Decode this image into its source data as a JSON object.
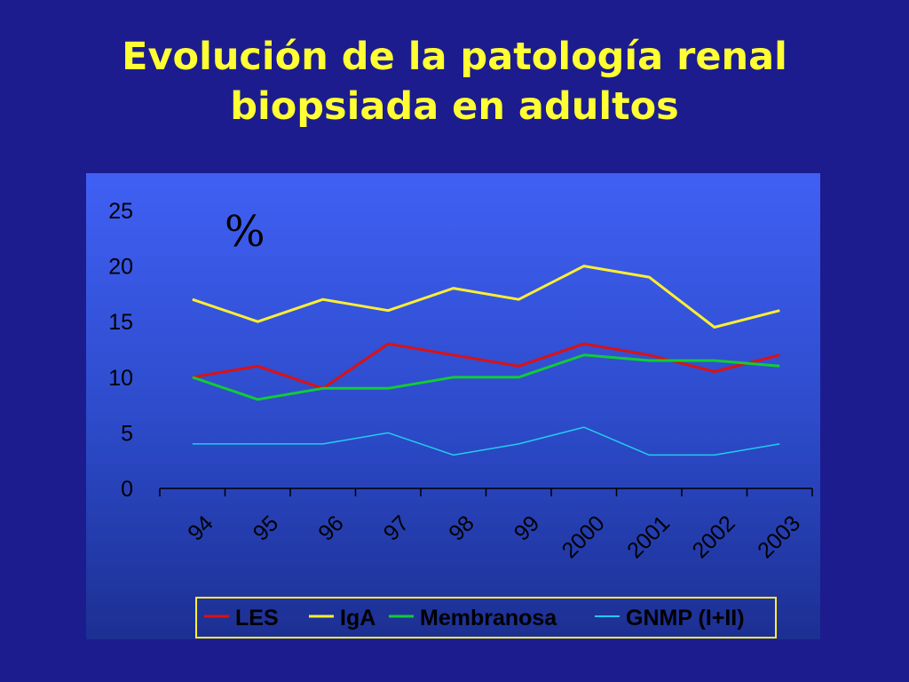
{
  "slide": {
    "title_line1": "Evolución de la patología renal",
    "title_line2": "biopsiada en adultos"
  },
  "chart_data": {
    "type": "line",
    "unit_label": "%",
    "categories": [
      "94",
      "95",
      "96",
      "97",
      "98",
      "99",
      "2000",
      "2001",
      "2002",
      "2003"
    ],
    "ylim": [
      0,
      25
    ],
    "yticks": [
      0,
      5,
      10,
      15,
      20,
      25
    ],
    "grid": false,
    "legend_position": "bottom",
    "series": [
      {
        "name": "LES",
        "color": "#dd1111",
        "width": 3,
        "values": [
          10,
          11,
          9,
          13,
          12,
          11,
          13,
          12,
          10.5,
          12
        ]
      },
      {
        "name": "IgA",
        "color": "#ffee33",
        "width": 3,
        "values": [
          17,
          15,
          17,
          16,
          18,
          17,
          20,
          19,
          14.5,
          16
        ]
      },
      {
        "name": "Membranosa",
        "color": "#11cc33",
        "width": 3,
        "values": [
          10,
          8,
          9,
          9,
          10,
          10,
          12,
          11.5,
          11.5,
          11
        ]
      },
      {
        "name": "GNMP (I+II)",
        "color": "#22ccee",
        "width": 1.5,
        "values": [
          4,
          4,
          4,
          5,
          3,
          4,
          5.5,
          3,
          3,
          4
        ]
      }
    ]
  }
}
